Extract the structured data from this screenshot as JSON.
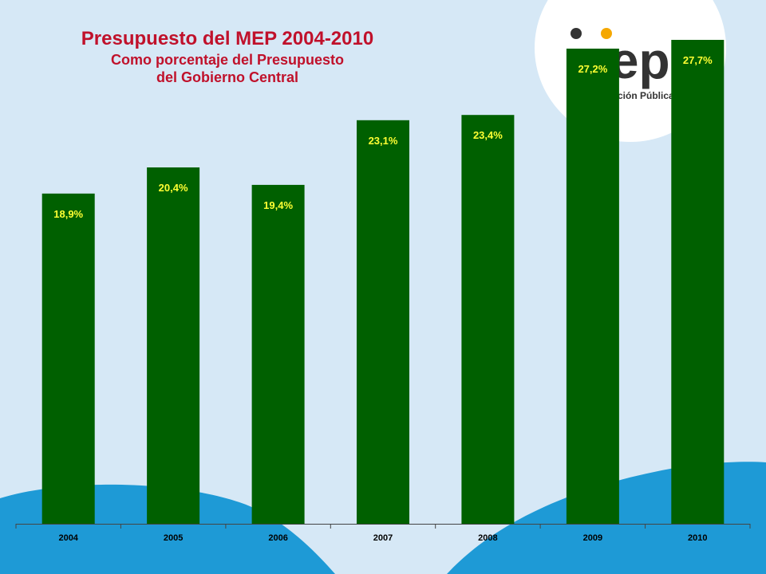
{
  "logo": {
    "text": "mep",
    "tagline": "ción Pública"
  },
  "colors": {
    "bar": "#006000",
    "data_label": "#ffff33",
    "title": "#c0112b",
    "background": "#d6e8f6",
    "wave": "#1e9ad6",
    "logo_accent": "#f5a800"
  },
  "chart_data": {
    "type": "bar",
    "title": "Presupuesto del MEP 2004-2010",
    "subtitle_lines": [
      "Como porcentaje del Presupuesto",
      "del Gobierno Central"
    ],
    "categories": [
      "2004",
      "2005",
      "2006",
      "2007",
      "2008",
      "2009",
      "2010"
    ],
    "values": [
      18.9,
      20.4,
      19.4,
      23.1,
      23.4,
      27.2,
      27.7
    ],
    "data_labels": [
      "18,9%",
      "20,4%",
      "19,4%",
      "23,1%",
      "23,4%",
      "27,2%",
      "27,7%"
    ],
    "xlabel": "",
    "ylabel": "",
    "ylim": [
      0,
      27.7
    ],
    "grid": false,
    "legend": "none"
  }
}
